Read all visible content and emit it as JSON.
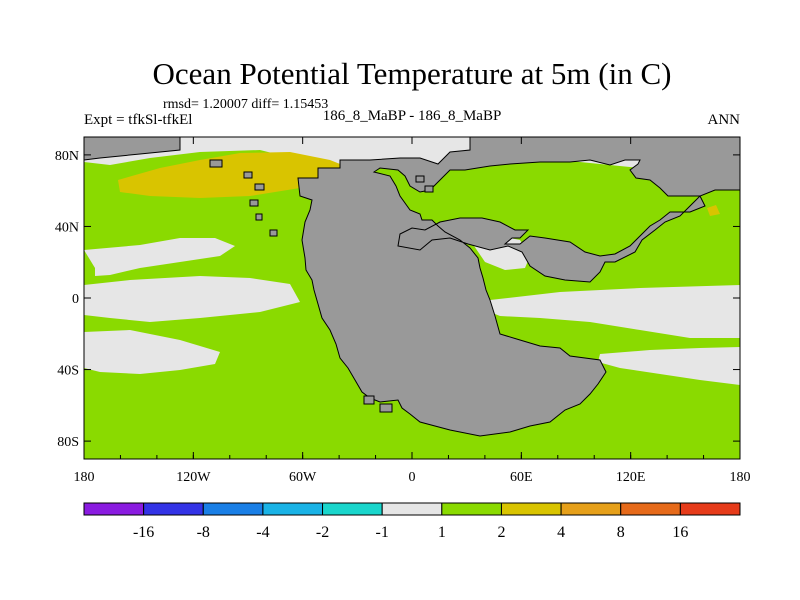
{
  "chart_data": {
    "type": "heatmap",
    "title": "Ocean Potential Temperature at 5m (in C)",
    "stats_text": "rmsd= 1.20007 diff= 1.15453",
    "left_label": "Expt = tfkSl-tfkEl",
    "center_label": "186_8_MaBP - 186_8_MaBP",
    "right_label": "ANN",
    "xaxis": {
      "range": [
        -180,
        180
      ],
      "ticks": [
        -180,
        -120,
        -60,
        0,
        60,
        120,
        180
      ],
      "tick_labels": [
        "180",
        "120W",
        "60W",
        "0",
        "60E",
        "120E",
        "180"
      ]
    },
    "yaxis": {
      "range": [
        -90,
        90
      ],
      "ticks": [
        80,
        40,
        0,
        -40,
        -80
      ],
      "tick_labels": [
        "80N",
        "40N",
        "0",
        "40S",
        "80S"
      ]
    },
    "colorbar": {
      "boundaries": [
        -16,
        -8,
        -4,
        -2,
        -1,
        1,
        2,
        4,
        8,
        16
      ],
      "boundary_labels": [
        "-16",
        "-8",
        "-4",
        "-2",
        "-1",
        "1",
        "2",
        "4",
        "8",
        "16"
      ],
      "colors": [
        "#8a1be0",
        "#3333e6",
        "#1a7fe6",
        "#1ab3e6",
        "#1ad6cc",
        "#e6e6e6",
        "#8ada00",
        "#d9c400",
        "#e6a01a",
        "#e66a1a",
        "#e63b1a"
      ]
    },
    "land_color": "#999999",
    "regions": [
      {
        "name": "north-atlantic-warm-patch",
        "bin": "2 to 4",
        "color": "#d9c400"
      },
      {
        "name": "ocean-background",
        "bin": "1 to 2",
        "color": "#8ada00"
      },
      {
        "name": "near-zero-bands",
        "bin": "-1 to 1",
        "color": "#e6e6e6"
      },
      {
        "name": "pangaea-landmass",
        "bin": "land",
        "color": "#999999"
      }
    ]
  }
}
